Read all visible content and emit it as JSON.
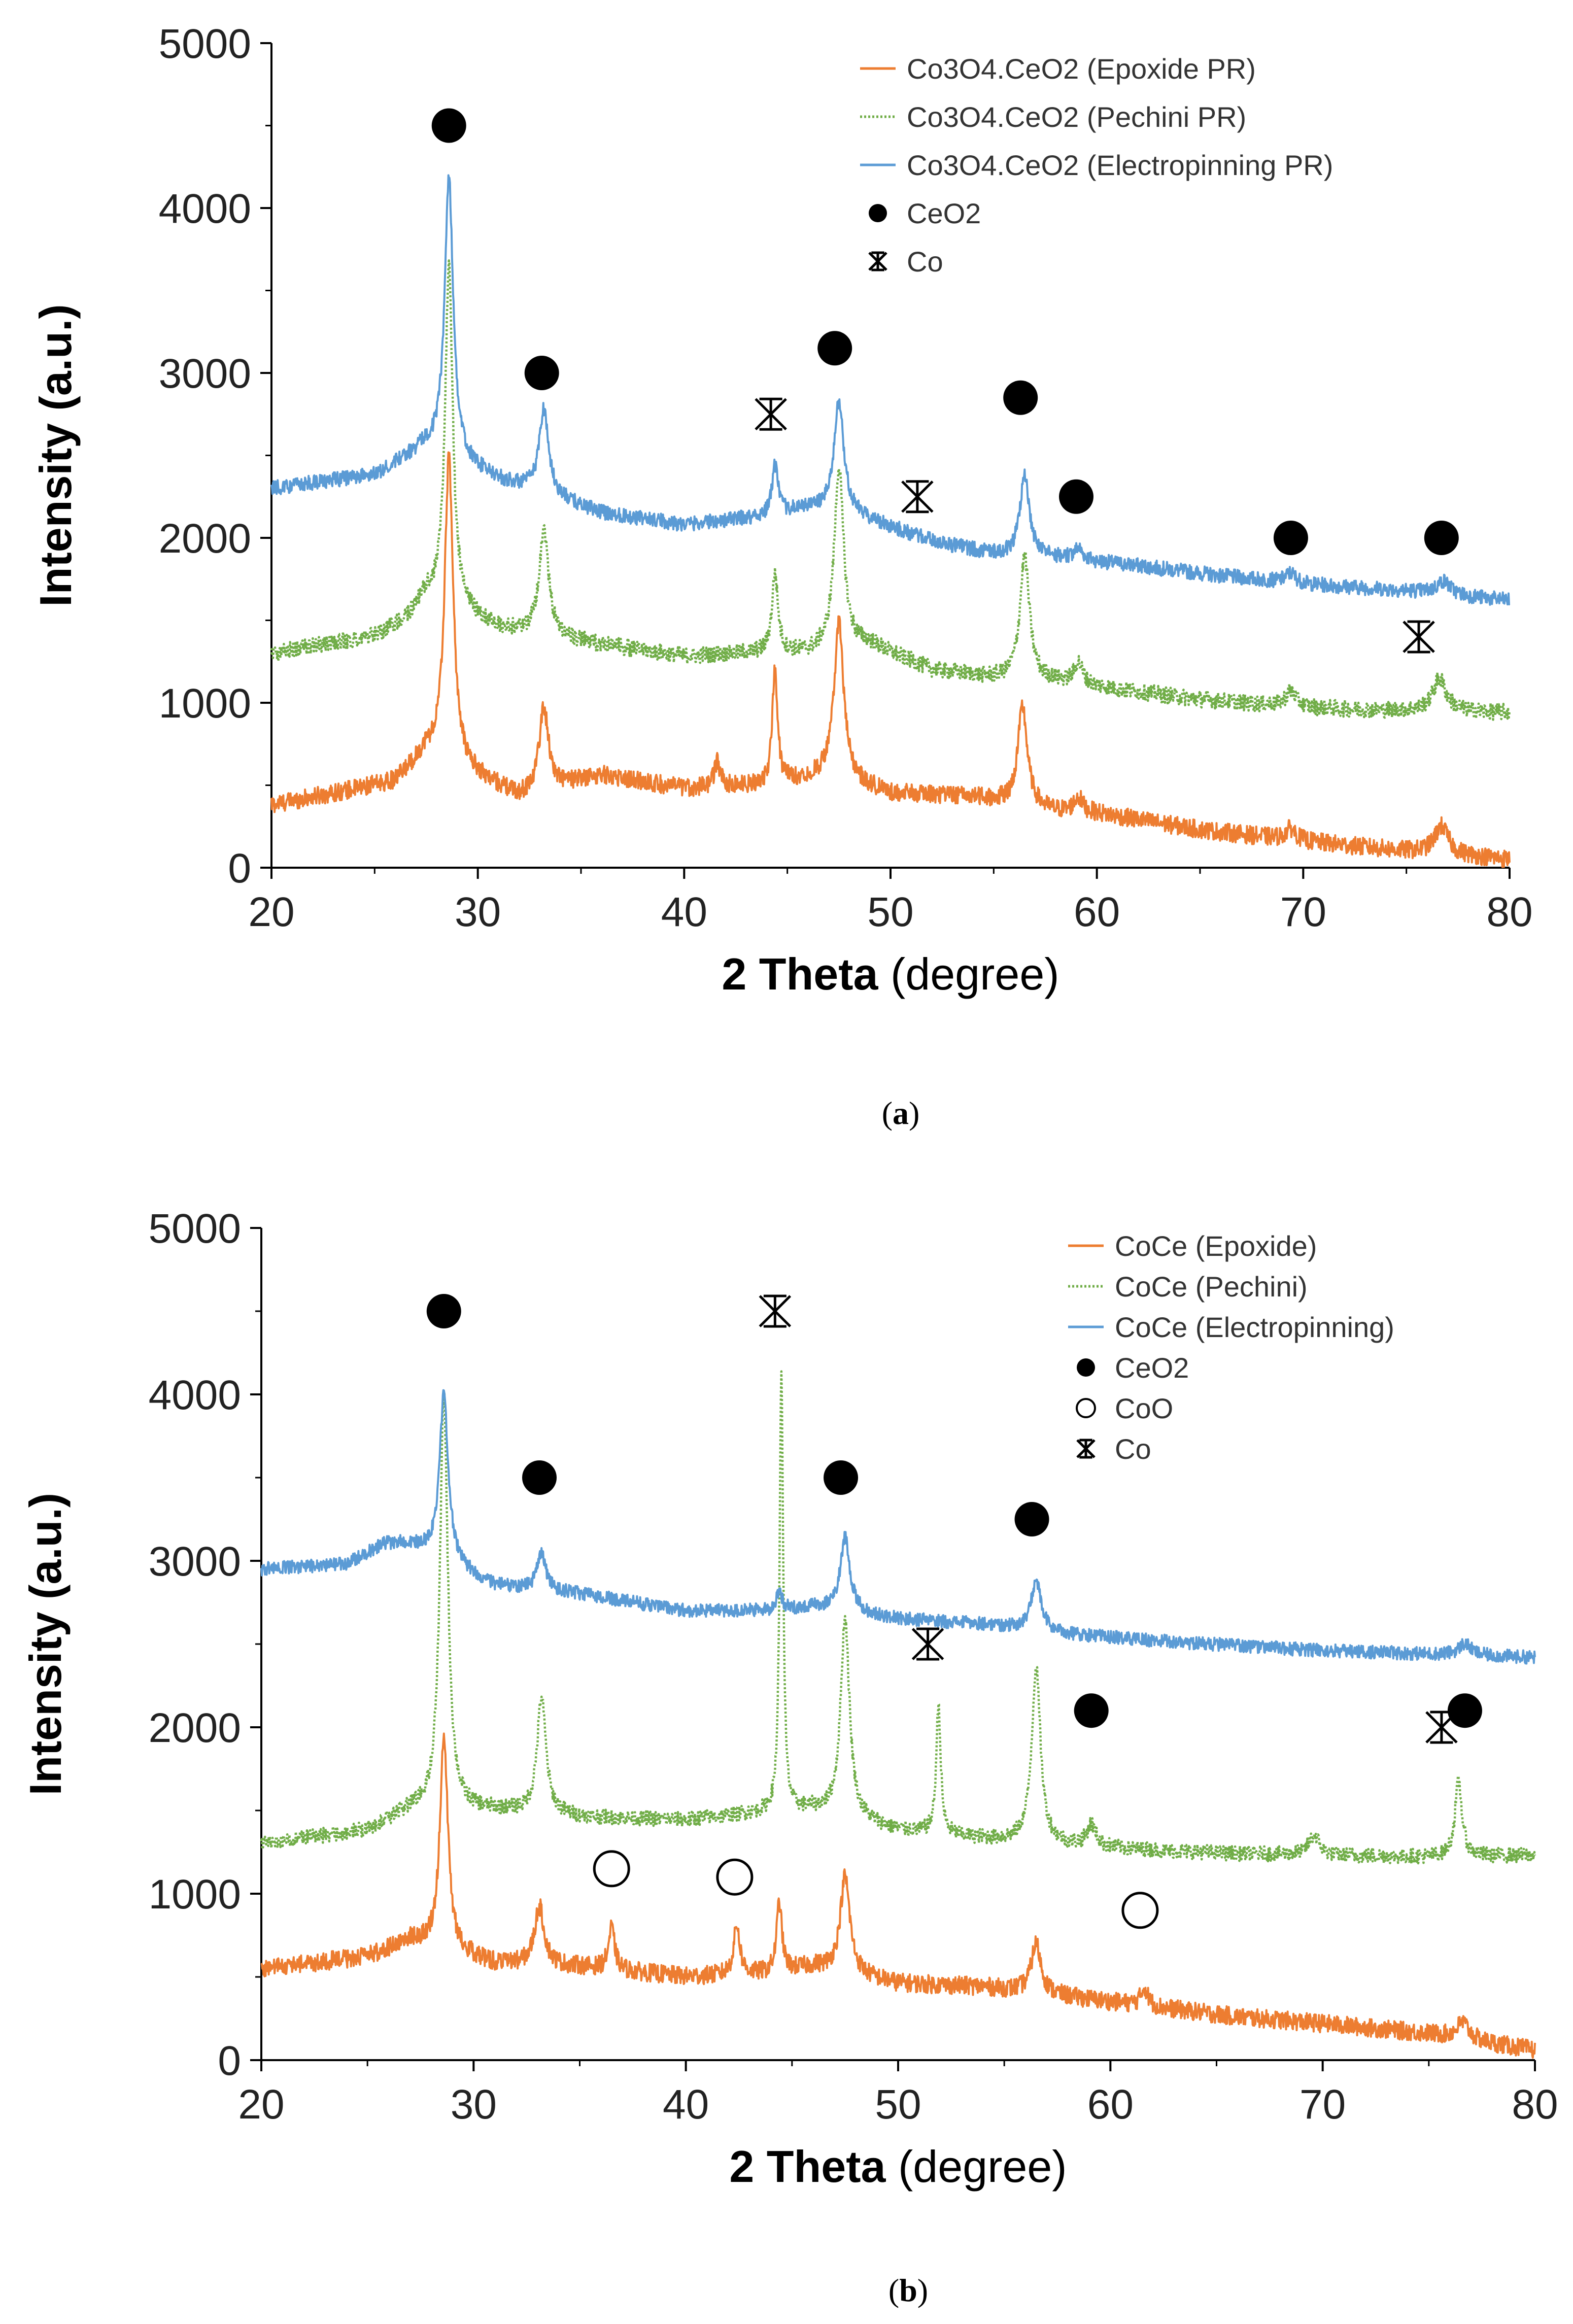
{
  "chart_data": [
    {
      "type": "line",
      "panel_label": "a",
      "xlabel_bold": "2 Theta",
      "xlabel_rest": " (degree)",
      "ylabel": "Intensity (a.u.)",
      "xlim": [
        20,
        80
      ],
      "ylim": [
        0,
        5000
      ],
      "xticks": [
        20,
        30,
        40,
        50,
        60,
        70,
        80
      ],
      "yticks": [
        0,
        1000,
        2000,
        3000,
        4000,
        5000
      ],
      "series": [
        {
          "name": "Co3O4.CeO2 (Epoxide PR)",
          "color": "#ED7D31",
          "style": "solid",
          "baseline": [
            [
              20,
              380
            ],
            [
              26,
              520
            ],
            [
              27.5,
              700
            ],
            [
              32,
              430
            ],
            [
              36,
              560
            ],
            [
              40,
              480
            ],
            [
              44,
              500
            ],
            [
              47,
              560
            ],
            [
              50,
              450
            ],
            [
              54,
              430
            ],
            [
              58,
              340
            ],
            [
              60,
              330
            ],
            [
              65,
              230
            ],
            [
              70,
              160
            ],
            [
              75,
              100
            ],
            [
              80,
              50
            ]
          ],
          "peaks": [
            [
              28.6,
              1850,
              0.5
            ],
            [
              33.2,
              500,
              0.55
            ],
            [
              41.6,
              150,
              0.35
            ],
            [
              44.4,
              700,
              0.3
            ],
            [
              47.5,
              950,
              0.55
            ],
            [
              56.4,
              600,
              0.55
            ],
            [
              59.1,
              90,
              0.5
            ],
            [
              69.4,
              70,
              0.6
            ],
            [
              76.7,
              170,
              0.8
            ]
          ],
          "noise": 55
        },
        {
          "name": "Co3O4.CeO2 (Pechini PR)",
          "color": "#70AD47",
          "style": "dotted",
          "baseline": [
            [
              20,
              1300
            ],
            [
              25,
              1400
            ],
            [
              26.5,
              1500
            ],
            [
              27.5,
              1650
            ],
            [
              31,
              1450
            ],
            [
              36,
              1350
            ],
            [
              40,
              1280
            ],
            [
              43,
              1300
            ],
            [
              46,
              1300
            ],
            [
              49,
              1350
            ],
            [
              52,
              1200
            ],
            [
              55,
              1150
            ],
            [
              58,
              1130
            ],
            [
              61,
              1080
            ],
            [
              65,
              1020
            ],
            [
              70,
              970
            ],
            [
              75,
              950
            ],
            [
              80,
              940
            ]
          ],
          "peaks": [
            [
              28.6,
              2050,
              0.45
            ],
            [
              33.2,
              650,
              0.55
            ],
            [
              44.4,
              480,
              0.35
            ],
            [
              47.5,
              1100,
              0.55
            ],
            [
              56.5,
              750,
              0.55
            ],
            [
              59.1,
              130,
              0.5
            ],
            [
              69.4,
              100,
              0.6
            ],
            [
              76.6,
              200,
              0.8
            ]
          ],
          "noise": 50
        },
        {
          "name": "Co3O4.CeO2 (Electropinning PR)",
          "color": "#5B9BD5",
          "style": "solid",
          "baseline": [
            [
              20,
              2300
            ],
            [
              25,
              2380
            ],
            [
              27.5,
              2550
            ],
            [
              31,
              2350
            ],
            [
              36,
              2150
            ],
            [
              40,
              2080
            ],
            [
              44,
              2130
            ],
            [
              46,
              2180
            ],
            [
              48,
              2150
            ],
            [
              52,
              1980
            ],
            [
              55,
              1900
            ],
            [
              58,
              1880
            ],
            [
              62,
              1830
            ],
            [
              66,
              1770
            ],
            [
              70,
              1720
            ],
            [
              75,
              1680
            ],
            [
              80,
              1620
            ]
          ],
          "peaks": [
            [
              28.6,
              1700,
              0.5
            ],
            [
              33.2,
              520,
              0.55
            ],
            [
              44.4,
              300,
              0.35
            ],
            [
              47.5,
              680,
              0.55
            ],
            [
              56.5,
              480,
              0.55
            ],
            [
              59.1,
              70,
              0.5
            ],
            [
              69.4,
              60,
              0.6
            ],
            [
              76.8,
              80,
              0.8
            ]
          ],
          "noise": 45
        }
      ],
      "legend": [
        {
          "label": "Co3O4.CeO2 (Epoxide PR)",
          "kind": "line",
          "color": "#ED7D31",
          "style": "solid"
        },
        {
          "label": "Co3O4.CeO2 (Pechini PR)",
          "kind": "line",
          "color": "#70AD47",
          "style": "dotted"
        },
        {
          "label": "Co3O4.CeO2 (Electropinning PR)",
          "kind": "line",
          "color": "#5B9BD5",
          "style": "solid"
        },
        {
          "label": "CeO2",
          "kind": "filled-circle"
        },
        {
          "label": "Co",
          "kind": "asterisk"
        }
      ],
      "markers": [
        {
          "phase": "CeO2",
          "x": 28.6,
          "y": 4500
        },
        {
          "phase": "CeO2",
          "x": 33.1,
          "y": 3000
        },
        {
          "phase": "CeO2",
          "x": 47.3,
          "y": 3150
        },
        {
          "phase": "CeO2",
          "x": 56.3,
          "y": 2850
        },
        {
          "phase": "CeO2",
          "x": 59.0,
          "y": 2250
        },
        {
          "phase": "CeO2",
          "x": 69.4,
          "y": 2000
        },
        {
          "phase": "CeO2",
          "x": 76.7,
          "y": 2000
        },
        {
          "phase": "Co",
          "x": 44.2,
          "y": 2750
        },
        {
          "phase": "Co",
          "x": 51.3,
          "y": 2250
        },
        {
          "phase": "Co",
          "x": 75.6,
          "y": 1400
        }
      ]
    },
    {
      "type": "line",
      "panel_label": "b",
      "xlabel_bold": "2 Theta",
      "xlabel_rest": " (degree)",
      "ylabel": "Intensity (a.u.)",
      "xlim": [
        20,
        80
      ],
      "ylim": [
        0,
        5000
      ],
      "xticks": [
        20,
        30,
        40,
        50,
        60,
        70,
        80
      ],
      "yticks": [
        0,
        1000,
        2000,
        3000,
        4000,
        5000
      ],
      "series": [
        {
          "name": "CoCe (Epoxide)",
          "color": "#ED7D31",
          "style": "solid",
          "baseline": [
            [
              20,
              550
            ],
            [
              25,
              620
            ],
            [
              27,
              720
            ],
            [
              31,
              580
            ],
            [
              35,
              560
            ],
            [
              40,
              500
            ],
            [
              44,
              520
            ],
            [
              46,
              560
            ],
            [
              50,
              460
            ],
            [
              54,
              440
            ],
            [
              58,
              380
            ],
            [
              62,
              320
            ],
            [
              66,
              260
            ],
            [
              70,
              220
            ],
            [
              75,
              160
            ],
            [
              80,
              60
            ]
          ],
          "peaks": [
            [
              28.6,
              1300,
              0.45
            ],
            [
              33.1,
              350,
              0.55
            ],
            [
              36.5,
              250,
              0.35
            ],
            [
              42.4,
              300,
              0.35
            ],
            [
              44.4,
              420,
              0.3
            ],
            [
              47.5,
              580,
              0.55
            ],
            [
              56.5,
              300,
              0.55
            ],
            [
              61.6,
              110,
              0.4
            ],
            [
              76.6,
              100,
              0.7
            ]
          ],
          "noise": 55
        },
        {
          "name": "CoCe (Pechini)",
          "color": "#70AD47",
          "style": "dotted",
          "baseline": [
            [
              20,
              1300
            ],
            [
              25,
              1380
            ],
            [
              27,
              1500
            ],
            [
              31,
              1500
            ],
            [
              35,
              1460
            ],
            [
              40,
              1440
            ],
            [
              43,
              1480
            ],
            [
              46,
              1500
            ],
            [
              50,
              1380
            ],
            [
              54,
              1330
            ],
            [
              58,
              1290
            ],
            [
              62,
              1260
            ],
            [
              66,
              1240
            ],
            [
              70,
              1230
            ],
            [
              75,
              1220
            ],
            [
              80,
              1230
            ]
          ],
          "peaks": [
            [
              28.6,
              2500,
              0.45
            ],
            [
              33.2,
              700,
              0.5
            ],
            [
              44.5,
              2650,
              0.2
            ],
            [
              47.5,
              1200,
              0.5
            ],
            [
              51.9,
              780,
              0.25
            ],
            [
              56.5,
              1050,
              0.5
            ],
            [
              59.1,
              130,
              0.5
            ],
            [
              69.6,
              120,
              0.6
            ],
            [
              76.4,
              450,
              0.4
            ]
          ],
          "noise": 45
        },
        {
          "name": "CoCe (Electropinning)",
          "color": "#5B9BD5",
          "style": "solid",
          "baseline": [
            [
              20,
              2950
            ],
            [
              24,
              2980
            ],
            [
              25.8,
              3100
            ],
            [
              27,
              3100
            ],
            [
              31,
              2850
            ],
            [
              35,
              2800
            ],
            [
              40,
              2700
            ],
            [
              44,
              2700
            ],
            [
              46,
              2720
            ],
            [
              50,
              2650
            ],
            [
              54,
              2620
            ],
            [
              58,
              2560
            ],
            [
              62,
              2520
            ],
            [
              66,
              2490
            ],
            [
              70,
              2460
            ],
            [
              75,
              2440
            ],
            [
              80,
              2420
            ]
          ],
          "peaks": [
            [
              28.6,
              1000,
              0.5
            ],
            [
              33.2,
              220,
              0.5
            ],
            [
              44.4,
              120,
              0.3
            ],
            [
              47.5,
              450,
              0.55
            ],
            [
              56.5,
              300,
              0.55
            ],
            [
              76.7,
              70,
              0.7
            ]
          ],
          "noise": 40
        }
      ],
      "legend": [
        {
          "label": "CoCe (Epoxide)",
          "kind": "line",
          "color": "#ED7D31",
          "style": "solid"
        },
        {
          "label": "CoCe (Pechini)",
          "kind": "line",
          "color": "#70AD47",
          "style": "dotted"
        },
        {
          "label": "CoCe (Electropinning)",
          "kind": "line",
          "color": "#5B9BD5",
          "style": "solid"
        },
        {
          "label": "CeO2",
          "kind": "filled-circle"
        },
        {
          "label": "CoO",
          "kind": "open-circle"
        },
        {
          "label": "Co",
          "kind": "asterisk"
        }
      ],
      "markers": [
        {
          "phase": "CeO2",
          "x": 28.6,
          "y": 4500
        },
        {
          "phase": "CeO2",
          "x": 33.1,
          "y": 3500
        },
        {
          "phase": "CeO2",
          "x": 47.3,
          "y": 3500
        },
        {
          "phase": "CeO2",
          "x": 56.3,
          "y": 3250
        },
        {
          "phase": "CeO2",
          "x": 59.1,
          "y": 2100
        },
        {
          "phase": "CeO2",
          "x": 76.7,
          "y": 2100
        },
        {
          "phase": "CoO",
          "x": 36.5,
          "y": 1150
        },
        {
          "phase": "CoO",
          "x": 42.3,
          "y": 1100
        },
        {
          "phase": "CoO",
          "x": 61.4,
          "y": 900
        },
        {
          "phase": "Co",
          "x": 44.2,
          "y": 4500
        },
        {
          "phase": "Co",
          "x": 51.4,
          "y": 2500
        },
        {
          "phase": "Co",
          "x": 75.6,
          "y": 2000
        }
      ]
    }
  ]
}
